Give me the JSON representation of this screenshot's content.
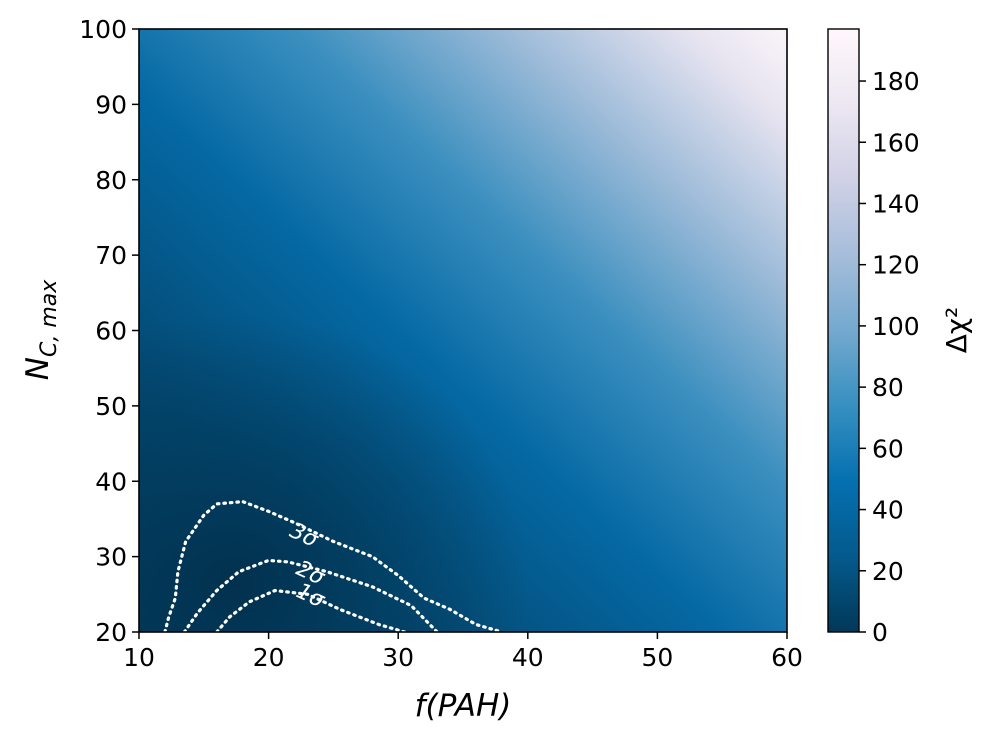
{
  "chart_data": {
    "type": "heatmap",
    "xlabel": "f(PAH)",
    "ylabel": "N_C,max",
    "xlim": [
      10,
      60
    ],
    "ylim": [
      20,
      100
    ],
    "x_ticks": [
      "10",
      "20",
      "30",
      "40",
      "50",
      "60"
    ],
    "y_ticks": [
      "20",
      "30",
      "40",
      "50",
      "60",
      "70",
      "80",
      "90",
      "100"
    ],
    "colorbar": {
      "label": "Δχ²",
      "range": [
        0,
        197
      ],
      "ticks": [
        "0",
        "20",
        "40",
        "60",
        "80",
        "100",
        "120",
        "140",
        "160",
        "180"
      ],
      "colormap": [
        "#023858",
        "#045a8d",
        "#0570b0",
        "#3690c0",
        "#74a9cf",
        "#a6bddb",
        "#d0d1e6",
        "#ece7f2",
        "#fff7fb"
      ]
    },
    "value_samples": [
      {
        "x": 20,
        "y": 25,
        "value": 0
      },
      {
        "x": 10,
        "y": 100,
        "value": 40
      },
      {
        "x": 35,
        "y": 60,
        "value": 60
      },
      {
        "x": 60,
        "y": 20,
        "value": 45
      },
      {
        "x": 45,
        "y": 80,
        "value": 110
      },
      {
        "x": 60,
        "y": 100,
        "value": 197
      }
    ],
    "contours": [
      {
        "label": "1σ",
        "points": [
          [
            16.0,
            20.0
          ],
          [
            17.0,
            22.0
          ],
          [
            18.5,
            24.0
          ],
          [
            20.5,
            25.5
          ],
          [
            23.0,
            25.0
          ],
          [
            25.5,
            23.0
          ],
          [
            28.5,
            21.0
          ],
          [
            30.5,
            20.0
          ]
        ]
      },
      {
        "label": "2σ",
        "points": [
          [
            13.5,
            20.0
          ],
          [
            14.5,
            22.5
          ],
          [
            16.0,
            25.5
          ],
          [
            17.7,
            28.0
          ],
          [
            20.0,
            29.5
          ],
          [
            21.5,
            29.3
          ],
          [
            24.5,
            28.0
          ],
          [
            28.0,
            26.0
          ],
          [
            31.0,
            23.5
          ],
          [
            33.0,
            20.0
          ]
        ]
      },
      {
        "label": "3σ",
        "points": [
          [
            12.0,
            20.0
          ],
          [
            12.3,
            22.0
          ],
          [
            12.8,
            24.5
          ],
          [
            13.0,
            28.0
          ],
          [
            13.6,
            32.0
          ],
          [
            15.0,
            35.5
          ],
          [
            16.0,
            37.0
          ],
          [
            18.0,
            37.3
          ],
          [
            20.0,
            36.0
          ],
          [
            22.0,
            34.5
          ],
          [
            25.0,
            32.0
          ],
          [
            28.0,
            30.0
          ],
          [
            30.0,
            27.5
          ],
          [
            32.0,
            24.5
          ],
          [
            34.0,
            23.0
          ],
          [
            36.0,
            21.0
          ],
          [
            38.0,
            20.0
          ]
        ]
      }
    ],
    "contour_labels": [
      {
        "text": "3σ",
        "x": 22.5,
        "y": 32.0
      },
      {
        "text": "2σ",
        "x": 23.0,
        "y": 27.0
      },
      {
        "text": "1σ",
        "x": 23.0,
        "y": 24.0
      }
    ]
  }
}
